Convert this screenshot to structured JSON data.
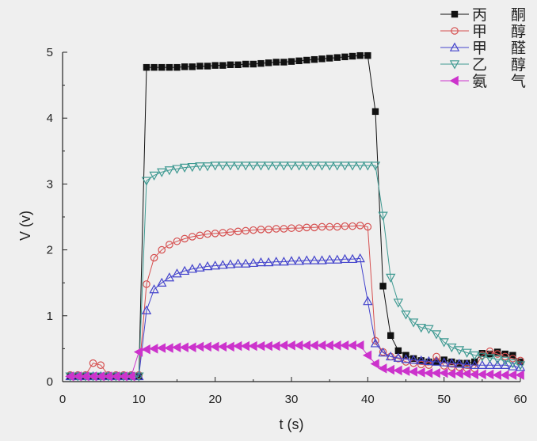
{
  "chart_data": {
    "type": "line",
    "title": "",
    "xlabel": "t (s)",
    "ylabel": "V (v)",
    "xlim": [
      0,
      60
    ],
    "ylim": [
      0,
      5
    ],
    "xticks": [
      0,
      10,
      20,
      30,
      40,
      50,
      60
    ],
    "yticks": [
      0,
      1,
      2,
      3,
      4,
      5
    ],
    "grid": false,
    "legend_position": "top-right",
    "series": [
      {
        "name": "丙酮",
        "marker": "square",
        "color": "#111111",
        "x": [
          1,
          2,
          3,
          4,
          5,
          6,
          7,
          8,
          9,
          10,
          11,
          12,
          13,
          14,
          15,
          16,
          17,
          18,
          19,
          20,
          21,
          22,
          23,
          24,
          25,
          26,
          27,
          28,
          29,
          30,
          31,
          32,
          33,
          34,
          35,
          36,
          37,
          38,
          39,
          40,
          41,
          42,
          43,
          44,
          45,
          46,
          47,
          48,
          49,
          50,
          51,
          52,
          53,
          54,
          55,
          56,
          57,
          58,
          59,
          60
        ],
        "y": [
          0.08,
          0.08,
          0.08,
          0.08,
          0.08,
          0.08,
          0.08,
          0.08,
          0.08,
          0.08,
          4.77,
          4.77,
          4.77,
          4.77,
          4.77,
          4.78,
          4.78,
          4.79,
          4.79,
          4.8,
          4.8,
          4.81,
          4.81,
          4.82,
          4.82,
          4.83,
          4.84,
          4.85,
          4.85,
          4.86,
          4.87,
          4.88,
          4.89,
          4.9,
          4.91,
          4.92,
          4.93,
          4.94,
          4.95,
          4.95,
          4.1,
          1.45,
          0.7,
          0.47,
          0.4,
          0.35,
          0.32,
          0.3,
          0.3,
          0.33,
          0.3,
          0.28,
          0.28,
          0.3,
          0.43,
          0.42,
          0.45,
          0.42,
          0.4,
          0.3
        ]
      },
      {
        "name": "甲醇",
        "marker": "circle",
        "color": "#d65050",
        "x": [
          1,
          2,
          3,
          4,
          5,
          6,
          7,
          8,
          9,
          10,
          11,
          12,
          13,
          14,
          15,
          16,
          17,
          18,
          19,
          20,
          21,
          22,
          23,
          24,
          25,
          26,
          27,
          28,
          29,
          30,
          31,
          32,
          33,
          34,
          35,
          36,
          37,
          38,
          39,
          40,
          41,
          42,
          43,
          44,
          45,
          46,
          47,
          48,
          49,
          50,
          51,
          52,
          53,
          54,
          55,
          56,
          57,
          58,
          59,
          60
        ],
        "y": [
          0.1,
          0.1,
          0.1,
          0.28,
          0.25,
          0.1,
          0.1,
          0.1,
          0.1,
          0.1,
          1.48,
          1.88,
          2.0,
          2.08,
          2.13,
          2.17,
          2.2,
          2.22,
          2.24,
          2.25,
          2.26,
          2.27,
          2.28,
          2.29,
          2.3,
          2.31,
          2.31,
          2.32,
          2.32,
          2.33,
          2.33,
          2.34,
          2.34,
          2.35,
          2.35,
          2.35,
          2.36,
          2.36,
          2.37,
          2.35,
          0.62,
          0.45,
          0.38,
          0.35,
          0.3,
          0.28,
          0.26,
          0.25,
          0.38,
          0.24,
          0.22,
          0.22,
          0.2,
          0.2,
          0.4,
          0.46,
          0.42,
          0.38,
          0.35,
          0.32
        ]
      },
      {
        "name": "甲醛",
        "marker": "triangle-up",
        "color": "#4444cc",
        "x": [
          1,
          2,
          3,
          4,
          5,
          6,
          7,
          8,
          9,
          10,
          11,
          12,
          13,
          14,
          15,
          16,
          17,
          18,
          19,
          20,
          21,
          22,
          23,
          24,
          25,
          26,
          27,
          28,
          29,
          30,
          31,
          32,
          33,
          34,
          35,
          36,
          37,
          38,
          39,
          40,
          41,
          42,
          43,
          44,
          45,
          46,
          47,
          48,
          49,
          50,
          51,
          52,
          53,
          54,
          55,
          56,
          57,
          58,
          59,
          60
        ],
        "y": [
          0.08,
          0.08,
          0.08,
          0.08,
          0.08,
          0.08,
          0.08,
          0.08,
          0.08,
          0.08,
          1.08,
          1.4,
          1.5,
          1.58,
          1.64,
          1.68,
          1.71,
          1.73,
          1.75,
          1.76,
          1.77,
          1.78,
          1.79,
          1.79,
          1.8,
          1.81,
          1.81,
          1.82,
          1.82,
          1.83,
          1.83,
          1.84,
          1.84,
          1.84,
          1.85,
          1.85,
          1.86,
          1.86,
          1.87,
          1.22,
          0.58,
          0.44,
          0.38,
          0.36,
          0.34,
          0.33,
          0.32,
          0.31,
          0.3,
          0.29,
          0.28,
          0.27,
          0.26,
          0.25,
          0.25,
          0.25,
          0.25,
          0.25,
          0.23,
          0.22
        ]
      },
      {
        "name": "乙醇",
        "marker": "triangle-down",
        "color": "#3f9a92",
        "x": [
          1,
          2,
          3,
          4,
          5,
          6,
          7,
          8,
          9,
          10,
          11,
          12,
          13,
          14,
          15,
          16,
          17,
          18,
          19,
          20,
          21,
          22,
          23,
          24,
          25,
          26,
          27,
          28,
          29,
          30,
          31,
          32,
          33,
          34,
          35,
          36,
          37,
          38,
          39,
          40,
          41,
          42,
          43,
          44,
          45,
          46,
          47,
          48,
          49,
          50,
          51,
          52,
          53,
          54,
          55,
          56,
          57,
          58,
          59,
          60
        ],
        "y": [
          0.08,
          0.08,
          0.08,
          0.08,
          0.08,
          0.08,
          0.08,
          0.08,
          0.08,
          0.08,
          3.05,
          3.13,
          3.18,
          3.21,
          3.23,
          3.25,
          3.26,
          3.27,
          3.27,
          3.28,
          3.28,
          3.28,
          3.28,
          3.28,
          3.28,
          3.28,
          3.28,
          3.28,
          3.28,
          3.28,
          3.28,
          3.28,
          3.28,
          3.28,
          3.28,
          3.28,
          3.28,
          3.28,
          3.28,
          3.28,
          3.28,
          2.52,
          1.58,
          1.2,
          1.02,
          0.9,
          0.82,
          0.8,
          0.72,
          0.6,
          0.52,
          0.48,
          0.44,
          0.4,
          0.38,
          0.36,
          0.34,
          0.32,
          0.28,
          0.25
        ]
      },
      {
        "name": "氨气",
        "marker": "triangle-left",
        "color": "#cc33cc",
        "x": [
          1,
          2,
          3,
          4,
          5,
          6,
          7,
          8,
          9,
          10,
          11,
          12,
          13,
          14,
          15,
          16,
          17,
          18,
          19,
          20,
          21,
          22,
          23,
          24,
          25,
          26,
          27,
          28,
          29,
          30,
          31,
          32,
          33,
          34,
          35,
          36,
          37,
          38,
          39,
          40,
          41,
          42,
          43,
          44,
          45,
          46,
          47,
          48,
          49,
          50,
          51,
          52,
          53,
          54,
          55,
          56,
          57,
          58,
          59,
          60
        ],
        "y": [
          0.08,
          0.08,
          0.08,
          0.08,
          0.08,
          0.08,
          0.08,
          0.08,
          0.08,
          0.45,
          0.49,
          0.5,
          0.51,
          0.51,
          0.52,
          0.52,
          0.52,
          0.53,
          0.53,
          0.53,
          0.53,
          0.53,
          0.54,
          0.54,
          0.54,
          0.54,
          0.54,
          0.54,
          0.55,
          0.55,
          0.55,
          0.55,
          0.55,
          0.55,
          0.55,
          0.55,
          0.55,
          0.55,
          0.55,
          0.4,
          0.27,
          0.2,
          0.18,
          0.17,
          0.16,
          0.15,
          0.14,
          0.13,
          0.13,
          0.13,
          0.12,
          0.12,
          0.12,
          0.11,
          0.11,
          0.11,
          0.1,
          0.1,
          0.1,
          0.1
        ]
      }
    ]
  }
}
